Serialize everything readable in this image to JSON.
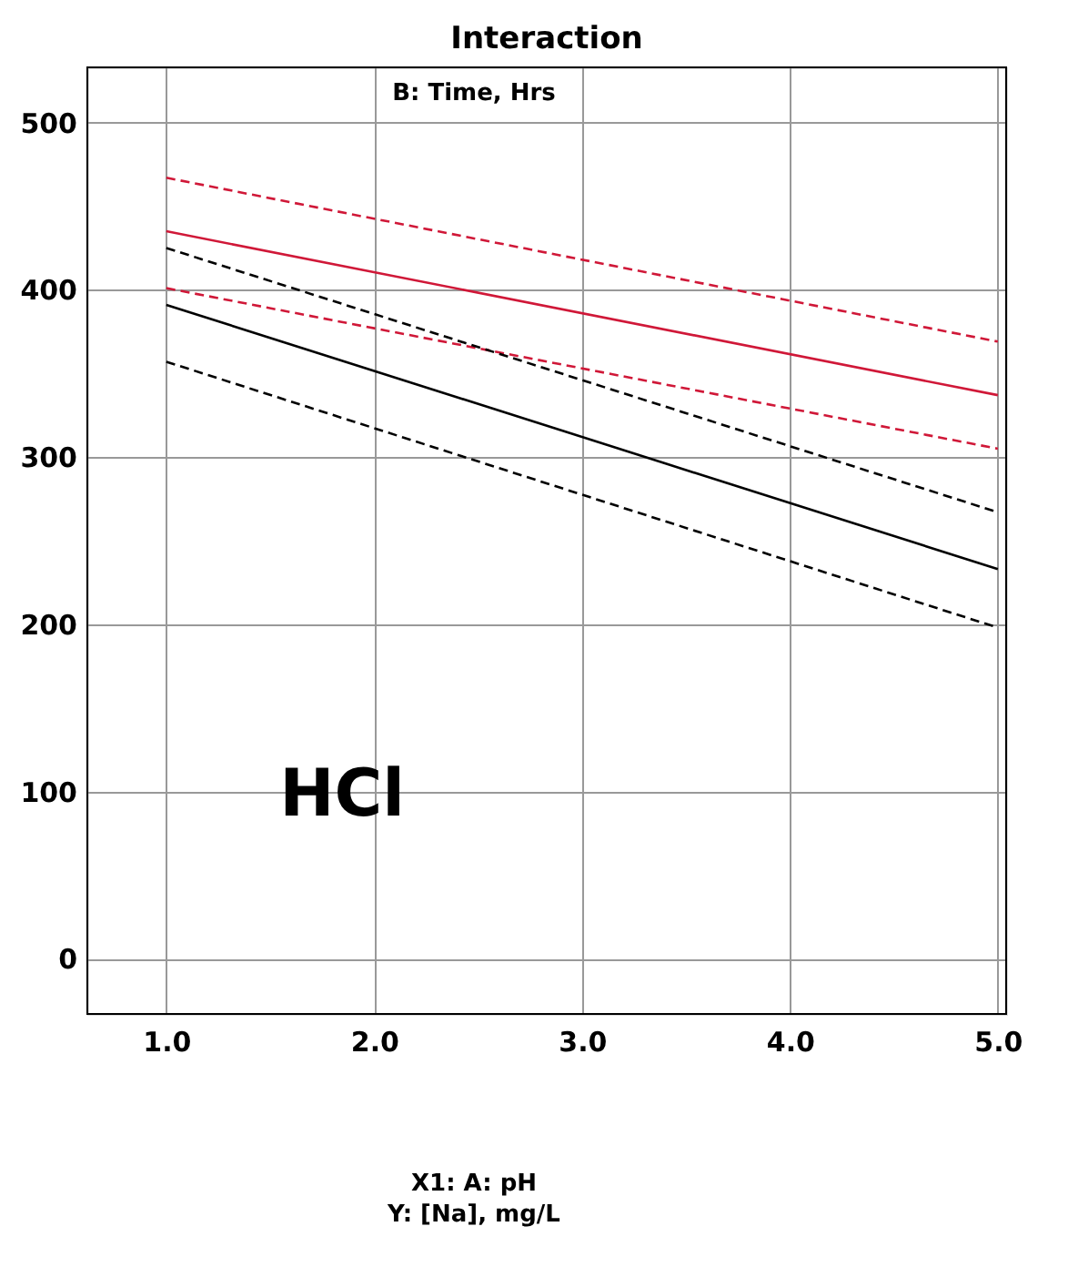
{
  "chart_data": {
    "type": "line",
    "title": "Interaction",
    "xlabel": "X1: A: pH",
    "x": [
      1,
      5
    ],
    "series": [
      {
        "color": "#d01838",
        "values": [
          467,
          369
        ],
        "line_style": "dashed"
      },
      {
        "color": "#d01838",
        "values": [
          435,
          337
        ],
        "line_style": "solid"
      },
      {
        "color": "#d01838",
        "values": [
          401,
          305
        ],
        "line_style": "dashed"
      },
      {
        "color": "#000000",
        "values": [
          425,
          267
        ],
        "line_style": "dashed"
      },
      {
        "color": "#000000",
        "values": [
          391,
          233
        ],
        "line_style": "solid"
      },
      {
        "color": "#000000",
        "values": [
          357,
          198
        ],
        "line_style": "dashed"
      }
    ],
    "annotations": [
      "B: Time, Hrs",
      "HCl",
      "Y: [Na], mg/L"
    ],
    "xlim": [
      0.62,
      5.04
    ],
    "ylim": [
      -33,
      533
    ],
    "xticks": [
      {
        "value": 1,
        "label": "1.0"
      },
      {
        "value": 2,
        "label": "2.0"
      },
      {
        "value": 3,
        "label": "3.0"
      },
      {
        "value": 4,
        "label": "4.0"
      },
      {
        "value": 5,
        "label": "5.0"
      }
    ],
    "yticks": [
      0,
      100,
      200,
      300,
      400,
      500
    ],
    "grid": true,
    "marker": "none"
  }
}
